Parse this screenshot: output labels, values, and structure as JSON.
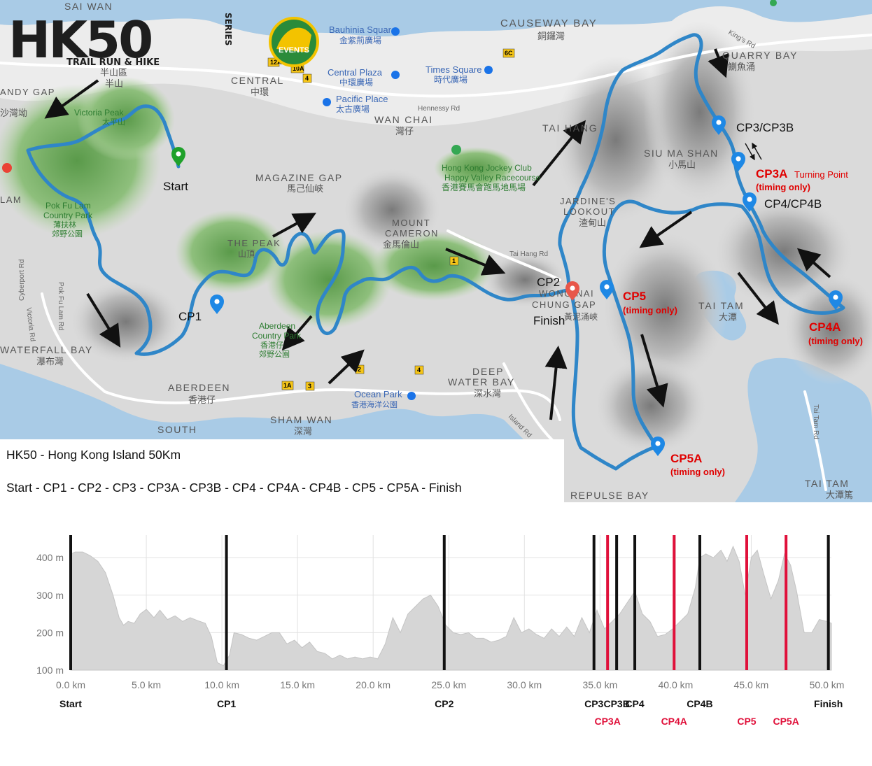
{
  "logo": {
    "main_text": "HK50",
    "series_text": "SERIES",
    "tagline": "TRAIL RUN & HIKE",
    "badge_text": "EVENTS"
  },
  "map_labels": [
    {
      "id": "sai-wan",
      "text": "SAI WAN"
    },
    {
      "id": "causeway-bay",
      "text": "CAUSEWAY BAY"
    },
    {
      "id": "causeway-bay-zh",
      "text": "銅鑼灣"
    },
    {
      "id": "quarry-bay",
      "text": "QUARRY BAY"
    },
    {
      "id": "quarry-bay-zh",
      "text": "鰂魚涌"
    },
    {
      "id": "central",
      "text": "CENTRAL"
    },
    {
      "id": "central-zh",
      "text": "中環"
    },
    {
      "id": "mid-levels",
      "text": "半山區"
    },
    {
      "id": "mid-levels-2",
      "text": "半山"
    },
    {
      "id": "bauhinia",
      "text": "Bauhinia Square"
    },
    {
      "id": "bauhinia-zh",
      "text": "金紫荊廣場"
    },
    {
      "id": "central-plaza",
      "text": "Central Plaza"
    },
    {
      "id": "central-plaza-zh",
      "text": "中環廣場"
    },
    {
      "id": "times-square",
      "text": "Times Square"
    },
    {
      "id": "times-square-zh",
      "text": "時代廣場"
    },
    {
      "id": "pacific-place",
      "text": "Pacific Place"
    },
    {
      "id": "pacific-place-zh",
      "text": "太古廣場"
    },
    {
      "id": "wan-chai",
      "text": "WAN CHAI"
    },
    {
      "id": "wan-chai-zh",
      "text": "灣仔"
    },
    {
      "id": "hennessy",
      "text": "Hennessy Rd"
    },
    {
      "id": "victoria-peak",
      "text": "Victoria Peak"
    },
    {
      "id": "victoria-peak-zh",
      "text": "太平山"
    },
    {
      "id": "andy-gap",
      "text": "ANDY GAP"
    },
    {
      "id": "andy-gap-zh",
      "text": "沙灣坳"
    },
    {
      "id": "tai-hang",
      "text": "TAI HANG"
    },
    {
      "id": "siu-ma-shan",
      "text": "SIU MA SHAN"
    },
    {
      "id": "siu-ma-shan-zh",
      "text": "小馬山"
    },
    {
      "id": "hkjc",
      "text": "Hong Kong Jockey Club"
    },
    {
      "id": "hkjc-2",
      "text": "Happy Valley Racecourse"
    },
    {
      "id": "hkjc-zh",
      "text": "香港賽馬會跑馬地馬場"
    },
    {
      "id": "magazine-gap",
      "text": "MAGAZINE GAP"
    },
    {
      "id": "magazine-gap-zh",
      "text": "馬己仙峽"
    },
    {
      "id": "jardines",
      "text": "JARDINE'S"
    },
    {
      "id": "lookout",
      "text": "LOOKOUT"
    },
    {
      "id": "jardines-zh",
      "text": "渣甸山"
    },
    {
      "id": "lam",
      "text": "LAM"
    },
    {
      "id": "pokfulam-cp",
      "text": "Pok Fu Lam"
    },
    {
      "id": "pokfulam-cp-2",
      "text": "Country Park"
    },
    {
      "id": "pokfulam-cp-zh",
      "text": "薄扶林"
    },
    {
      "id": "pokfulam-cp-zh2",
      "text": "郊野公園"
    },
    {
      "id": "mount-cameron",
      "text": "MOUNT"
    },
    {
      "id": "mount-cameron-2",
      "text": "CAMERON"
    },
    {
      "id": "mount-cameron-zh",
      "text": "金馬倫山"
    },
    {
      "id": "the-peak",
      "text": "THE PEAK"
    },
    {
      "id": "the-peak-zh",
      "text": "山頂"
    },
    {
      "id": "tai-hang-rd",
      "text": "Tai Hang Rd"
    },
    {
      "id": "wong-nai-chung",
      "text": "WONG NAI"
    },
    {
      "id": "wong-nai-chung-2",
      "text": "CHUNG GAP"
    },
    {
      "id": "wong-nai-chung-zh",
      "text": "黃泥涌峽"
    },
    {
      "id": "tai-tam",
      "text": "TAI TAM"
    },
    {
      "id": "tai-tam-zh",
      "text": "大潭"
    },
    {
      "id": "aberdeen-cp",
      "text": "Aberdeen"
    },
    {
      "id": "aberdeen-cp-2",
      "text": "Country Park"
    },
    {
      "id": "aberdeen-cp-zh",
      "text": "香港仔"
    },
    {
      "id": "aberdeen-cp-zh2",
      "text": "郊野公園"
    },
    {
      "id": "waterfall-bay",
      "text": "WATERFALL BAY"
    },
    {
      "id": "waterfall-bay-zh",
      "text": "瀑布灣"
    },
    {
      "id": "deep-water-bay",
      "text": "DEEP"
    },
    {
      "id": "deep-water-bay-2",
      "text": "WATER BAY"
    },
    {
      "id": "deep-water-bay-zh",
      "text": "深水灣"
    },
    {
      "id": "aberdeen",
      "text": "ABERDEEN"
    },
    {
      "id": "aberdeen-zh",
      "text": "香港仔"
    },
    {
      "id": "ocean-park",
      "text": "Ocean Park"
    },
    {
      "id": "ocean-park-zh",
      "text": "香港海洋公園"
    },
    {
      "id": "sham-wan",
      "text": "SHAM WAN"
    },
    {
      "id": "sham-wan-zh",
      "text": "深灣"
    },
    {
      "id": "south",
      "text": "SOUTH"
    },
    {
      "id": "repulse-bay",
      "text": "REPULSE BAY"
    },
    {
      "id": "tai-tam-bay",
      "text": "TAI TAM"
    },
    {
      "id": "tai-tam-bay-zh",
      "text": "大潭篤"
    },
    {
      "id": "victoria-rd",
      "text": "Victoria Rd"
    },
    {
      "id": "pokfulam-rd",
      "text": "Pok Fu Lam Rd"
    },
    {
      "id": "cyberport-rd",
      "text": "Cyberport Rd"
    },
    {
      "id": "island-rd",
      "text": "Island Rd"
    },
    {
      "id": "tai-tam-rd",
      "text": "Tai Tam Rd"
    },
    {
      "id": "kings-rd",
      "text": "King's Rd"
    }
  ],
  "checkpoints": [
    {
      "id": "start",
      "label": "Start",
      "color": "#111111"
    },
    {
      "id": "cp1",
      "label": "CP1",
      "color": "#111111"
    },
    {
      "id": "cp2",
      "label": "CP2",
      "color": "#111111"
    },
    {
      "id": "finish",
      "label": "Finish",
      "color": "#111111"
    },
    {
      "id": "cp3",
      "label": "CP3/CP3B",
      "color": "#111111"
    },
    {
      "id": "cp3a",
      "label": "CP3A",
      "sub": "Turning Point",
      "note": "(timing only)",
      "color": "#e00000"
    },
    {
      "id": "cp4",
      "label": "CP4/CP4B",
      "color": "#111111"
    },
    {
      "id": "cp4a",
      "label": "CP4A",
      "note": "(timing only)",
      "color": "#e00000"
    },
    {
      "id": "cp5",
      "label": "CP5",
      "note": "(timing only)",
      "color": "#e00000"
    },
    {
      "id": "cp5a",
      "label": "CP5A",
      "note": "(timing only)",
      "color": "#e00000"
    }
  ],
  "info": {
    "title": "HK50 - Hong Kong Island 50Km",
    "sequence": "Start - CP1 - CP2 - CP3 - CP3A - CP3B - CP4 - CP4A - CP4B - CP5 - CP5A - Finish"
  },
  "colors": {
    "route": "#2f86c8",
    "profile_fill": "#d6d6d6",
    "checkpoint_black": "#111111",
    "checkpoint_red": "#e0103a",
    "park_green": "#6fae5c",
    "water": "#a9cbe6"
  },
  "chart_data": {
    "type": "area",
    "x_unit": "km",
    "y_unit": "m",
    "xlim": [
      0,
      50.3
    ],
    "ylim": [
      100,
      460
    ],
    "x_ticks": [
      0,
      5,
      10,
      15,
      20,
      25,
      30,
      35,
      40,
      45,
      50
    ],
    "x_tick_labels": [
      "0.0 km",
      "5.0 km",
      "10.0 km",
      "15.0 km",
      "20.0 km",
      "25.0 km",
      "30.0 km",
      "35.0 km",
      "40.0 km",
      "45.0 km",
      "50.0 km"
    ],
    "y_ticks": [
      100,
      200,
      300,
      400
    ],
    "y_tick_labels": [
      "100 m",
      "200 m",
      "300 m",
      "400 m"
    ],
    "grid": true,
    "elevation": {
      "x": [
        0,
        0.3,
        0.8,
        1.3,
        1.8,
        2.3,
        2.8,
        3.2,
        3.5,
        3.8,
        4.2,
        4.6,
        5.0,
        5.5,
        5.9,
        6.4,
        6.9,
        7.4,
        7.9,
        8.4,
        8.9,
        9.3,
        9.7,
        10.1,
        10.5,
        10.8,
        11.3,
        11.8,
        12.3,
        12.8,
        13.3,
        13.8,
        14.3,
        14.8,
        15.3,
        15.8,
        16.3,
        16.8,
        17.3,
        17.8,
        18.3,
        18.8,
        19.3,
        19.8,
        20.3,
        20.8,
        21.3,
        21.8,
        22.3,
        22.8,
        23.3,
        23.8,
        24.3,
        24.8,
        25.3,
        25.8,
        26.3,
        26.8,
        27.3,
        27.8,
        28.3,
        28.8,
        29.3,
        29.8,
        30.3,
        30.8,
        31.3,
        31.8,
        32.3,
        32.8,
        33.3,
        33.8,
        34.3,
        34.8,
        35.3,
        35.8,
        36.3,
        36.8,
        37.3,
        37.8,
        38.3,
        38.8,
        39.3,
        39.8,
        40.3,
        40.8,
        41.3,
        41.6,
        42.0,
        42.5,
        43.0,
        43.4,
        43.8,
        44.2,
        44.6,
        45.0,
        45.4,
        45.8,
        46.3,
        46.8,
        47.2,
        47.6,
        48.0,
        48.5,
        49.0,
        49.5,
        50.0,
        50.3
      ],
      "y": [
        410,
        415,
        415,
        405,
        390,
        360,
        300,
        240,
        220,
        230,
        225,
        250,
        262,
        240,
        260,
        235,
        245,
        230,
        240,
        232,
        225,
        190,
        120,
        112,
        140,
        200,
        195,
        185,
        180,
        190,
        200,
        200,
        170,
        180,
        160,
        175,
        150,
        145,
        130,
        140,
        130,
        135,
        130,
        135,
        130,
        170,
        240,
        200,
        250,
        270,
        290,
        300,
        270,
        220,
        200,
        195,
        200,
        185,
        185,
        175,
        180,
        190,
        240,
        200,
        210,
        195,
        185,
        210,
        190,
        215,
        190,
        240,
        200,
        260,
        210,
        230,
        250,
        280,
        310,
        250,
        230,
        190,
        195,
        210,
        230,
        250,
        320,
        400,
        410,
        400,
        420,
        390,
        430,
        390,
        300,
        400,
        420,
        360,
        290,
        340,
        410,
        380,
        310,
        200,
        200,
        235,
        230,
        225
      ]
    },
    "checkpoints": [
      {
        "label": "Start",
        "km": 0,
        "color": "#111111",
        "row": 1
      },
      {
        "label": "CP1",
        "km": 10.3,
        "color": "#111111",
        "row": 1
      },
      {
        "label": "CP2",
        "km": 24.7,
        "color": "#111111",
        "row": 1
      },
      {
        "label": "CP3",
        "km": 34.6,
        "color": "#111111",
        "row": 1
      },
      {
        "label": "CP3A",
        "km": 35.5,
        "color": "#e0103a",
        "row": 2
      },
      {
        "label": "CP3B",
        "km": 36.1,
        "color": "#111111",
        "row": 1
      },
      {
        "label": "CP4",
        "km": 37.3,
        "color": "#111111",
        "row": 1
      },
      {
        "label": "CP4A",
        "km": 39.9,
        "color": "#e0103a",
        "row": 2
      },
      {
        "label": "CP4B",
        "km": 41.6,
        "color": "#111111",
        "row": 1
      },
      {
        "label": "CP5",
        "km": 44.7,
        "color": "#e0103a",
        "row": 2
      },
      {
        "label": "CP5A",
        "km": 47.3,
        "color": "#e0103a",
        "row": 2
      },
      {
        "label": "Finish",
        "km": 50.1,
        "color": "#111111",
        "row": 1
      }
    ]
  }
}
